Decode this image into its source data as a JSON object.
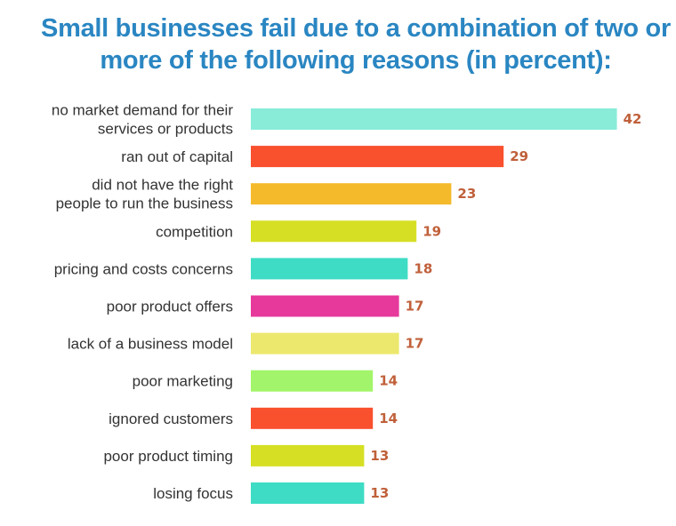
{
  "chart_data": {
    "type": "bar",
    "orientation": "horizontal",
    "title_lines": [
      "Small businesses fail due to a combination of two or",
      "more of the following reasons (in percent):"
    ],
    "categories": [
      [
        "no market demand for their",
        "services or products"
      ],
      [
        "ran out of capital"
      ],
      [
        "did not have the right",
        "people to run the business"
      ],
      [
        "competition"
      ],
      [
        "pricing and costs concerns"
      ],
      [
        "poor product offers"
      ],
      [
        "lack of a business model"
      ],
      [
        "poor marketing"
      ],
      [
        "ignored customers"
      ],
      [
        "poor product timing"
      ],
      [
        "losing focus"
      ]
    ],
    "values": [
      42,
      29,
      23,
      19,
      18,
      17,
      17,
      14,
      14,
      13,
      13
    ],
    "colors": [
      "#88ecd9",
      "#f9502d",
      "#f5ba2b",
      "#d6df24",
      "#3edcc4",
      "#e6399b",
      "#ece86d",
      "#a2f56a",
      "#f9502d",
      "#d6df24",
      "#3edcc4"
    ],
    "value_label_color": "#c0603a",
    "title_color": "#2a86c2"
  }
}
